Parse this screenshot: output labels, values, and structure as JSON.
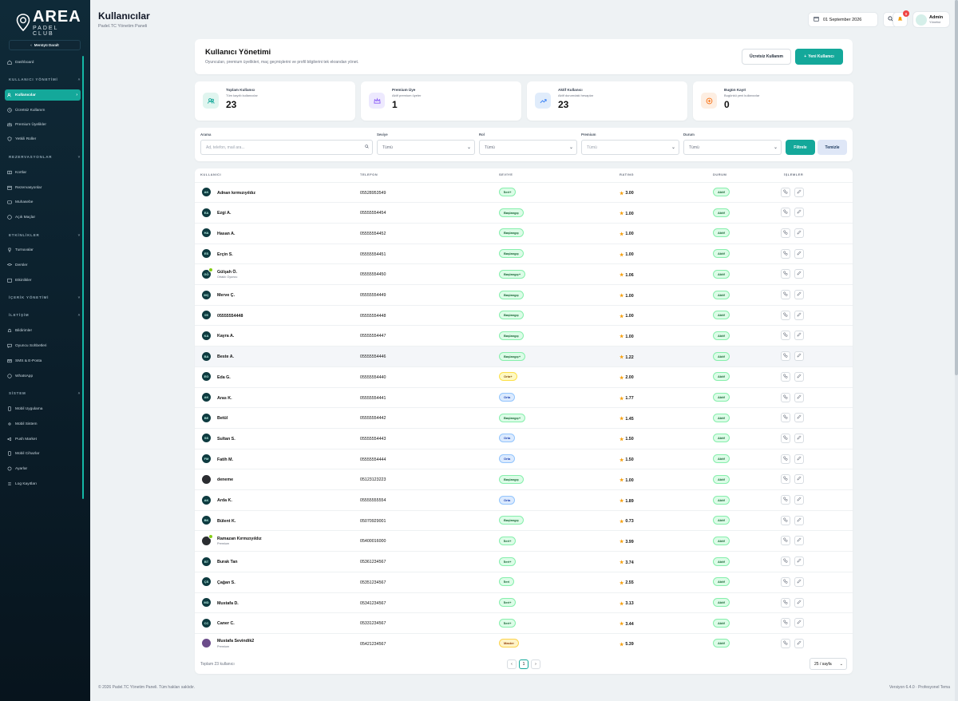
{
  "brand": {
    "name": "AREA",
    "tagline": "PADEL CLUB"
  },
  "sidebar": {
    "collapse_label": "Menüyü Daralt",
    "sections": {
      "users": "KULLANICI YÖNETİMİ",
      "reservations": "REZERVASYONLAR",
      "events": "ETKİNLİKLER",
      "content": "İÇERİK YÖNETİMİ",
      "communication": "İLETİŞİM",
      "system": "SİSTEM"
    },
    "items": {
      "dashboard": "Dashboard",
      "users": "Kullanıcılar",
      "free_users": "Ücretsiz Kullanım",
      "premium": "Premium Üyelikler",
      "roles": "Yetkili Roller",
      "courts": "Kortlar",
      "reservations": "Rezervasyonlar",
      "accounting": "Muhasebe",
      "open_matches": "Açık Maçlar",
      "tournaments": "Turnuvalar",
      "lessons": "Dersler",
      "events": "Etkinlikler",
      "notifications": "Bildirimler",
      "player_chats": "Oyuncu Sohbetleri",
      "sms_email": "SMS & E-Posta",
      "whatsapp": "WhatsApp",
      "mobile_app": "Mobil Uygulama",
      "mobile_system": "Mobil Sistem",
      "push_market": "Push Market",
      "mobile_devices": "Mobil Cihazlar",
      "settings": "Ayarlar",
      "logs": "Log Kayıtları"
    }
  },
  "header": {
    "title": "Kullanıcılar",
    "subtitle": "Padel.TC Yönetim Paneli",
    "date": "01 September 2026",
    "notif_count": "8",
    "user_name": "Admin",
    "user_role": "Yönetici"
  },
  "page": {
    "title": "Kullanıcı Yönetimi",
    "subtitle": "Oyuncuları, premium üyelikleri, maç geçmişlerini ve profil bilgilerini tek ekrandan yönet.",
    "btn_free": "Ücretsiz Kullanım",
    "btn_new": "Yeni Kullanıcı"
  },
  "stats": [
    {
      "label": "Toplam Kullanıcı",
      "sub": "Tüm kayıtlı kullanıcılar",
      "value": "23"
    },
    {
      "label": "Premium Üye",
      "sub": "Aktif premium üyeler",
      "value": "1"
    },
    {
      "label": "Aktif Kullanıcı",
      "sub": "Aktif durumdaki hesaplar",
      "value": "23"
    },
    {
      "label": "Bugün Kayıt",
      "sub": "Bugünkü yeni kullanıcılar",
      "value": "0"
    }
  ],
  "filters": {
    "search_label": "Arama",
    "search_placeholder": "Ad, telefon, mail ara...",
    "level_label": "Seviye",
    "level_value": "Tümü",
    "role_label": "Rol",
    "role_value": "Tümü",
    "premium_label": "Premium",
    "premium_value": "Tümü",
    "status_label": "Durum",
    "status_value": "Tümü",
    "btn_filter": "Filtrele",
    "btn_clear": "Temizle"
  },
  "table": {
    "columns": {
      "user": "KULLANICI",
      "phone": "TELEFON",
      "level": "SEVİYE",
      "rating": "RATING",
      "status": "DURUM",
      "actions": "İŞLEMLER"
    },
    "rows": [
      {
        "initials": "AK",
        "name": "Adnan kırmızıyıldız",
        "sub": "",
        "phone": "05528953549",
        "level": "İleri+",
        "lv": "g",
        "rating": "3.00",
        "status": "Aktif"
      },
      {
        "initials": "EA",
        "name": "Ezgi A.",
        "sub": "",
        "phone": "05555554454",
        "level": "Başlangıç",
        "lv": "g",
        "rating": "1.00",
        "status": "Aktif"
      },
      {
        "initials": "HA",
        "name": "Hasan A.",
        "sub": "",
        "phone": "05555554452",
        "level": "Başlangıç",
        "lv": "g",
        "rating": "1.00",
        "status": "Aktif"
      },
      {
        "initials": "ES",
        "name": "Erçin S.",
        "sub": "",
        "phone": "05555554451",
        "level": "Başlangıç",
        "lv": "g",
        "rating": "1.00",
        "status": "Aktif"
      },
      {
        "initials": "GÖ",
        "name": "Gülşah Ö.",
        "sub": "Ortaklı Oyuncu",
        "phone": "05555554450",
        "level": "Başlangıç+",
        "lv": "g",
        "rating": "1.06",
        "status": "Aktif",
        "verified": true
      },
      {
        "initials": "MÇ",
        "name": "Merve Ç.",
        "sub": "",
        "phone": "05555554449",
        "level": "Başlangıç",
        "lv": "g",
        "rating": "1.00",
        "status": "Aktif"
      },
      {
        "initials": "05",
        "name": "05555554448",
        "sub": "",
        "phone": "05555554448",
        "level": "Başlangıç",
        "lv": "g",
        "rating": "1.00",
        "status": "Aktif"
      },
      {
        "initials": "KA",
        "name": "Kayra A.",
        "sub": "",
        "phone": "05555554447",
        "level": "Başlangıç",
        "lv": "g",
        "rating": "1.00",
        "status": "Aktif"
      },
      {
        "initials": "BA",
        "name": "Beste A.",
        "sub": "",
        "phone": "05555554446",
        "level": "Başlangıç+",
        "lv": "g",
        "rating": "1.22",
        "status": "Aktif",
        "hl": true
      },
      {
        "initials": "EG",
        "name": "Eda G.",
        "sub": "",
        "phone": "05555554440",
        "level": "Orta+",
        "lv": "o",
        "rating": "2.00",
        "status": "Aktif"
      },
      {
        "initials": "AK",
        "name": "Aras K.",
        "sub": "",
        "phone": "05555554441",
        "level": "Orta",
        "lv": "b",
        "rating": "1.77",
        "status": "Aktif"
      },
      {
        "initials": "BE",
        "name": "Betül",
        "sub": "",
        "phone": "05555554442",
        "level": "Başlangıç+",
        "lv": "g",
        "rating": "1.45",
        "status": "Aktif"
      },
      {
        "initials": "SS",
        "name": "Sultan S.",
        "sub": "",
        "phone": "05555554443",
        "level": "Orta",
        "lv": "b",
        "rating": "1.50",
        "status": "Aktif"
      },
      {
        "initials": "FM",
        "name": "Fatih M.",
        "sub": "",
        "phone": "05555554444",
        "level": "Orta",
        "lv": "b",
        "rating": "1.50",
        "status": "Aktif"
      },
      {
        "initials": "",
        "name": "deneme",
        "sub": "",
        "phone": "05123123223",
        "level": "Başlangıç",
        "lv": "g",
        "rating": "1.00",
        "status": "Aktif",
        "img": 1
      },
      {
        "initials": "AK",
        "name": "Arda K.",
        "sub": "",
        "phone": "05555555554",
        "level": "Orta",
        "lv": "b",
        "rating": "1.89",
        "status": "Aktif"
      },
      {
        "initials": "BK",
        "name": "Bülent K.",
        "sub": "",
        "phone": "05070929001",
        "level": "Başlangıç",
        "lv": "g",
        "rating": "0.73",
        "status": "Aktif"
      },
      {
        "initials": "",
        "name": "Ramazan Kırmızıyıldız",
        "sub": "Premium",
        "phone": "05400016000",
        "level": "İleri+",
        "lv": "g",
        "rating": "3.99",
        "status": "Aktif",
        "img": 1,
        "verified": true
      },
      {
        "initials": "BT",
        "name": "Burak Tan",
        "sub": "",
        "phone": "05361234567",
        "level": "İleri+",
        "lv": "g",
        "rating": "3.74",
        "status": "Aktif"
      },
      {
        "initials": "ÇS",
        "name": "Çağan S.",
        "sub": "",
        "phone": "05351234567",
        "level": "İleri",
        "lv": "g",
        "rating": "2.55",
        "status": "Aktif"
      },
      {
        "initials": "MD",
        "name": "Mustafa D.",
        "sub": "",
        "phone": "05341234567",
        "level": "İleri+",
        "lv": "g",
        "rating": "3.13",
        "status": "Aktif"
      },
      {
        "initials": "CC",
        "name": "Caner C.",
        "sub": "",
        "phone": "05331234567",
        "level": "İleri+",
        "lv": "g",
        "rating": "3.44",
        "status": "Aktif"
      },
      {
        "initials": "",
        "name": "Mustafa Sevindik2",
        "sub": "Premium",
        "phone": "05421234567",
        "level": "Master",
        "lv": "m",
        "rating": "5.39",
        "status": "Aktif",
        "img": 2
      }
    ]
  },
  "pagination": {
    "total": "Toplam 23 kullanıcı",
    "prev": "‹",
    "page": "1",
    "next": "›",
    "per_page": "25 / sayfa"
  },
  "footer": {
    "left": "© 2026 Padel.TC Yönetim Paneli. Tüm hakları saklıdır.",
    "right": "Versiyon 6.4.0 · Profesyonel Tema"
  }
}
